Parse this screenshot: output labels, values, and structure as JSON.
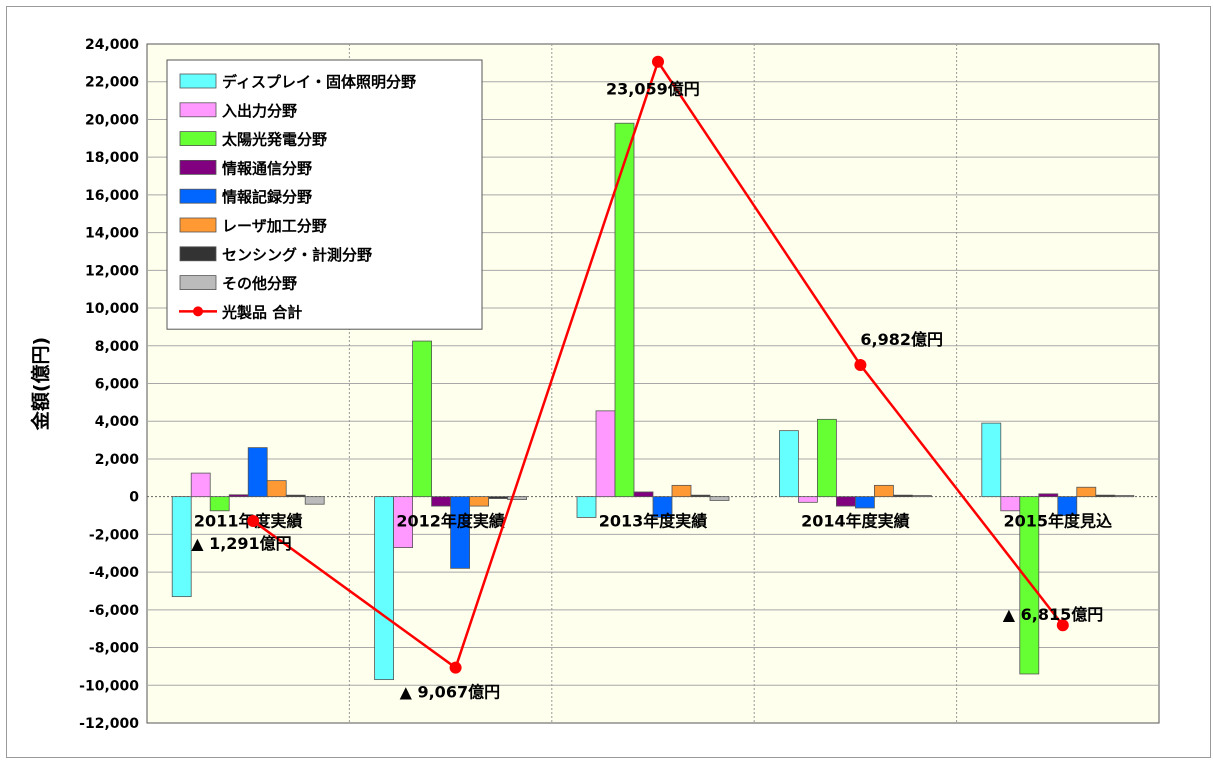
{
  "chart_data": {
    "type": "bar",
    "ylabel": "金額(億円)",
    "ylim": [
      -12000,
      24000
    ],
    "ytick_step": 2000,
    "grid": true,
    "legend_position": "top-left",
    "categories": [
      "2011年度実績",
      "2012年度実績",
      "2013年度実績",
      "2014年度実績",
      "2015年度見込"
    ],
    "series": [
      {
        "name": "ディスプレイ・固体照明分野",
        "color": "#66ffff",
        "values": [
          -5300,
          -9700,
          -1100,
          3500,
          3900
        ]
      },
      {
        "name": "入出力分野",
        "color": "#ff99ff",
        "values": [
          1250,
          -2700,
          4550,
          -300,
          -750
        ]
      },
      {
        "name": "太陽光発電分野",
        "color": "#66ff33",
        "values": [
          -750,
          8250,
          19800,
          4100,
          -9400
        ]
      },
      {
        "name": "情報通信分野",
        "color": "#800080",
        "values": [
          100,
          -500,
          250,
          -500,
          150
        ]
      },
      {
        "name": "情報記録分野",
        "color": "#0066ff",
        "values": [
          2600,
          -3800,
          -1100,
          -600,
          -1000
        ]
      },
      {
        "name": "レーザ加工分野",
        "color": "#ff9933",
        "values": [
          850,
          -500,
          600,
          600,
          500
        ]
      },
      {
        "name": "センシング・計測分野",
        "color": "#333333",
        "values": [
          80,
          -100,
          80,
          80,
          80
        ]
      },
      {
        "name": "その他分野",
        "color": "#bbbbbb",
        "values": [
          -400,
          -150,
          -200,
          60,
          60
        ]
      }
    ],
    "line": {
      "name": "光製品 合計",
      "color": "#ff0000",
      "values": [
        -1291,
        -9067,
        23059,
        6982,
        -6815
      ],
      "labels": [
        "▲ 1,291億円",
        "▲ 9,067億円",
        "23,059億円",
        "6,982億円",
        "▲ 6,815億円"
      ]
    }
  }
}
